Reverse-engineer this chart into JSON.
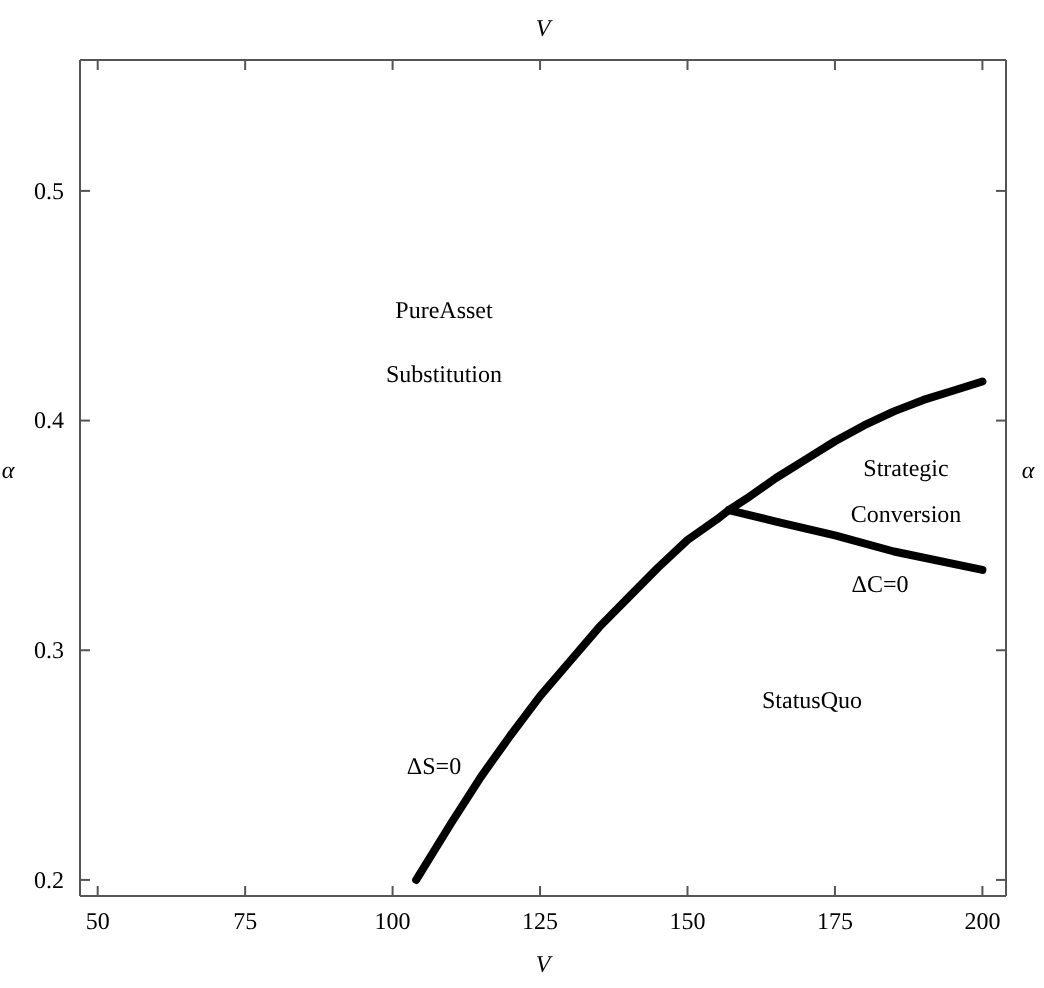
{
  "chart_data": {
    "type": "line",
    "xlabel": "V",
    "x2label": "V",
    "ylabel": "α",
    "y2label": "α",
    "xlim": [
      47,
      204
    ],
    "ylim": [
      0.193,
      0.557
    ],
    "xticks": [
      50,
      75,
      100,
      125,
      150,
      175,
      200
    ],
    "yticks": [
      0.2,
      0.3,
      0.4,
      0.5
    ],
    "tick_labels": "xy",
    "grid": false,
    "line_style": "solid",
    "marker": "none",
    "series": [
      {
        "color": "#000000",
        "x": [
          104,
          110,
          115,
          120,
          125,
          130,
          135,
          140,
          145,
          150,
          155,
          157,
          160,
          165,
          170,
          175,
          180,
          185,
          190,
          195,
          200
        ],
        "values": [
          0.2,
          0.225,
          0.245,
          0.263,
          0.28,
          0.295,
          0.31,
          0.323,
          0.336,
          0.348,
          0.357,
          0.361,
          0.366,
          0.375,
          0.383,
          0.391,
          0.398,
          0.404,
          0.409,
          0.413,
          0.417
        ]
      },
      {
        "color": "#000000",
        "x": [
          157,
          165,
          175,
          185,
          200
        ],
        "values": [
          0.361,
          0.356,
          0.35,
          0.343,
          0.335
        ]
      }
    ],
    "annotations": [
      "PureAsset",
      "Substitution",
      "Strategic",
      "Conversion",
      "ΔC=0",
      "StatusQuo",
      "ΔS=0"
    ]
  }
}
